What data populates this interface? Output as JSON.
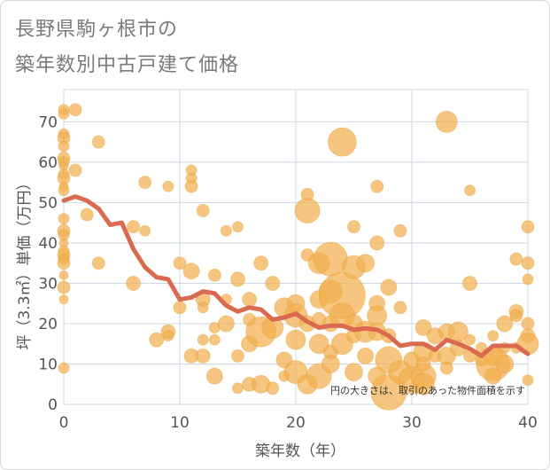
{
  "title_line1": "長野県駒ヶ根市の",
  "title_line2": "築年数別中古戸建て価格",
  "colors": {
    "bubble_fill": "#f3b04f",
    "bubble_stroke": "#e29a33",
    "line": "#d9694f",
    "grid": "#cfd7e4",
    "text": "#555555",
    "title": "#7a7a7a"
  },
  "chart_data": {
    "type": "scatter",
    "xlabel": "築年数（年）",
    "ylabel": "坪（3.3㎡）単価（万円）",
    "xlim": [
      0,
      40
    ],
    "ylim": [
      0,
      78
    ],
    "x_ticks": [
      0,
      10,
      20,
      30,
      40
    ],
    "y_ticks": [
      0,
      10,
      20,
      30,
      40,
      50,
      60,
      70
    ],
    "grid": true,
    "note": "円の大きさは、取引のあった物件面積を示す",
    "series": [
      {
        "type": "line",
        "x": [
          0,
          1,
          2,
          3,
          4,
          5,
          6,
          7,
          8,
          9,
          10,
          11,
          12,
          13,
          14,
          15,
          16,
          17,
          18,
          19,
          20,
          21,
          22,
          23,
          24,
          25,
          26,
          27,
          28,
          29,
          30,
          31,
          32,
          33,
          34,
          35,
          36,
          37,
          38,
          39,
          40
        ],
        "values": [
          50.5,
          51.5,
          50.5,
          48.5,
          44.5,
          45.0,
          38.5,
          34.0,
          31.5,
          31.0,
          26.0,
          26.5,
          28.0,
          27.5,
          24.5,
          23.0,
          24.0,
          23.5,
          21.0,
          21.5,
          22.5,
          20.5,
          19.0,
          19.5,
          19.5,
          18.5,
          18.8,
          18.5,
          17.0,
          14.5,
          15.0,
          15.0,
          13.5,
          16.0,
          15.0,
          13.8,
          12.0,
          14.5,
          14.5,
          14.5,
          12.5
        ]
      },
      {
        "type": "bubble",
        "points": [
          [
            0,
            73,
            6
          ],
          [
            0,
            72,
            6
          ],
          [
            0,
            67,
            6
          ],
          [
            0,
            66,
            7
          ],
          [
            0,
            64,
            6
          ],
          [
            0,
            61,
            7
          ],
          [
            0,
            60,
            6
          ],
          [
            0,
            59,
            5
          ],
          [
            0,
            57,
            6
          ],
          [
            0,
            56,
            7
          ],
          [
            0,
            54,
            5
          ],
          [
            0,
            53,
            6
          ],
          [
            0,
            46,
            6
          ],
          [
            0,
            43,
            7
          ],
          [
            0,
            42,
            6
          ],
          [
            0,
            40,
            5
          ],
          [
            0,
            38,
            6
          ],
          [
            0,
            37,
            7
          ],
          [
            0,
            36,
            6
          ],
          [
            0,
            35,
            7
          ],
          [
            0,
            32,
            5
          ],
          [
            0,
            29,
            7
          ],
          [
            0,
            26,
            5
          ],
          [
            0,
            9,
            6
          ],
          [
            1,
            73,
            7
          ],
          [
            1,
            58,
            7
          ],
          [
            2,
            47,
            7
          ],
          [
            3,
            65,
            7
          ],
          [
            3,
            35,
            7
          ],
          [
            6,
            44,
            7
          ],
          [
            6,
            30,
            8
          ],
          [
            7,
            55,
            7
          ],
          [
            7,
            43,
            6
          ],
          [
            8,
            16,
            8
          ],
          [
            9,
            54,
            6
          ],
          [
            9,
            18,
            8
          ],
          [
            9,
            17,
            6
          ],
          [
            10,
            35,
            7
          ],
          [
            10,
            24,
            7
          ],
          [
            11,
            58,
            6
          ],
          [
            11,
            56,
            6
          ],
          [
            11,
            54,
            7
          ],
          [
            11,
            33,
            9
          ],
          [
            11,
            12,
            8
          ],
          [
            12,
            48,
            7
          ],
          [
            12,
            26,
            8
          ],
          [
            12,
            24,
            6
          ],
          [
            12,
            16,
            6
          ],
          [
            12,
            12,
            8
          ],
          [
            13,
            32,
            7
          ],
          [
            13,
            19,
            6
          ],
          [
            13,
            16,
            6
          ],
          [
            13,
            7,
            9
          ],
          [
            14,
            43,
            6
          ],
          [
            14,
            26,
            6
          ],
          [
            14,
            20,
            9
          ],
          [
            15,
            44,
            6
          ],
          [
            15,
            31,
            8
          ],
          [
            15,
            12,
            7
          ],
          [
            15,
            4,
            6
          ],
          [
            16,
            26,
            8
          ],
          [
            16,
            21,
            7
          ],
          [
            16,
            15,
            9
          ],
          [
            16,
            5,
            8
          ],
          [
            17,
            35,
            8
          ],
          [
            17,
            18,
            17
          ],
          [
            17,
            5,
            10
          ],
          [
            18,
            30,
            8
          ],
          [
            18,
            19,
            12
          ],
          [
            18,
            4,
            7
          ],
          [
            19,
            24,
            11
          ],
          [
            19,
            11,
            9
          ],
          [
            19,
            7,
            6
          ],
          [
            20,
            25,
            10
          ],
          [
            20,
            22,
            13
          ],
          [
            20,
            16,
            11
          ],
          [
            20,
            8,
            13
          ],
          [
            21,
            52,
            7
          ],
          [
            21,
            48,
            14
          ],
          [
            21,
            37,
            7
          ],
          [
            21,
            20,
            9
          ],
          [
            21,
            5,
            11
          ],
          [
            22,
            35,
            12
          ],
          [
            22,
            26,
            10
          ],
          [
            22,
            21,
            8
          ],
          [
            22,
            15,
            11
          ],
          [
            22,
            7,
            14
          ],
          [
            23,
            36,
            19
          ],
          [
            23,
            28,
            13
          ],
          [
            23,
            20,
            9
          ],
          [
            23,
            13,
            8
          ],
          [
            23,
            10,
            10
          ],
          [
            24,
            65,
            16
          ],
          [
            24,
            27,
            26
          ],
          [
            24,
            22,
            14
          ],
          [
            24,
            15,
            12
          ],
          [
            25,
            44,
            7
          ],
          [
            25,
            34,
            13
          ],
          [
            25,
            20,
            10
          ],
          [
            25,
            17,
            8
          ],
          [
            25,
            8,
            10
          ],
          [
            26,
            35,
            10
          ],
          [
            26,
            18,
            12
          ],
          [
            26,
            12,
            9
          ],
          [
            27,
            54,
            7
          ],
          [
            27,
            40,
            8
          ],
          [
            27,
            25,
            9
          ],
          [
            27,
            22,
            11
          ],
          [
            27,
            18,
            10
          ],
          [
            27,
            7,
            10
          ],
          [
            28,
            29,
            9
          ],
          [
            28,
            17,
            8
          ],
          [
            28,
            11,
            15
          ],
          [
            28,
            3,
            20
          ],
          [
            29,
            43,
            7
          ],
          [
            29,
            24,
            7
          ],
          [
            29,
            8,
            13
          ],
          [
            30,
            11,
            9
          ],
          [
            30,
            6,
            15
          ],
          [
            31,
            19,
            9
          ],
          [
            31,
            13,
            11
          ],
          [
            31,
            10,
            8
          ],
          [
            31,
            7,
            14
          ],
          [
            31,
            5,
            12
          ],
          [
            32,
            17,
            9
          ],
          [
            32,
            12,
            7
          ],
          [
            33,
            70,
            12
          ],
          [
            33,
            18,
            9
          ],
          [
            33,
            12,
            10
          ],
          [
            33,
            9,
            7
          ],
          [
            34,
            18,
            11
          ],
          [
            34,
            14,
            9
          ],
          [
            35,
            53,
            6
          ],
          [
            35,
            30,
            8
          ],
          [
            35,
            16,
            6
          ],
          [
            35,
            12,
            7
          ],
          [
            36,
            14,
            6
          ],
          [
            36,
            11,
            7
          ],
          [
            37,
            17,
            6
          ],
          [
            37,
            12,
            11
          ],
          [
            37,
            10,
            19
          ],
          [
            37,
            7,
            9
          ],
          [
            38,
            20,
            9
          ],
          [
            38,
            14,
            6
          ],
          [
            38,
            10,
            10
          ],
          [
            39,
            36,
            7
          ],
          [
            39,
            23,
            8
          ],
          [
            39,
            22,
            7
          ],
          [
            39,
            14,
            6
          ],
          [
            40,
            44,
            7
          ],
          [
            40,
            35,
            7
          ],
          [
            40,
            31,
            6
          ],
          [
            40,
            20,
            7
          ],
          [
            40,
            17,
            8
          ],
          [
            40,
            15,
            12
          ],
          [
            40,
            6,
            6
          ]
        ]
      }
    ]
  }
}
